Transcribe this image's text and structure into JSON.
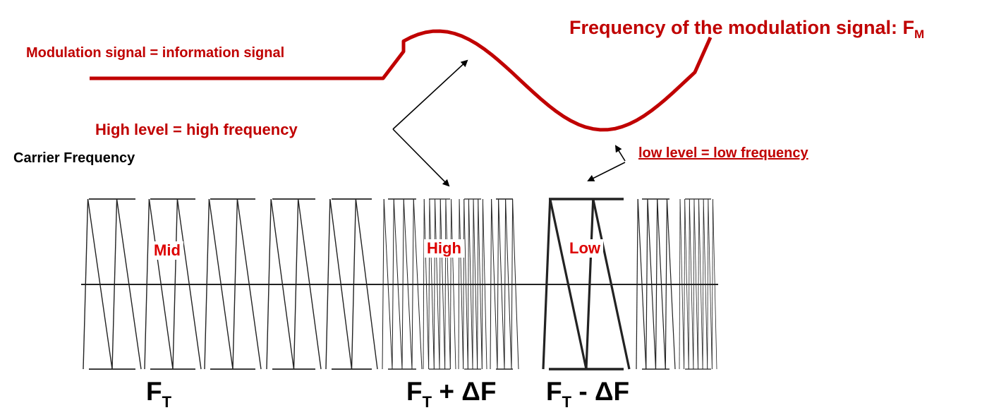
{
  "labels": {
    "modulation_signal": "Modulation signal = information signal",
    "frequency_of_modulation": "Frequency of the modulation signal: F",
    "frequency_sub": "M",
    "high_level": "High level = high frequency",
    "low_level": "low level = low frequency",
    "carrier_frequency": "Carrier Frequency",
    "box_mid": "Mid",
    "box_high": "High",
    "box_low": "Low",
    "ft_main": "F",
    "ft_sub": "T",
    "ft_plus_suffix": " + ΔF",
    "ft_minus_suffix": " - ΔF"
  },
  "colors": {
    "modulation_line": "#c00000",
    "label_red": "#c00000",
    "box_text": "#dd0000",
    "carrier": "#222222"
  }
}
